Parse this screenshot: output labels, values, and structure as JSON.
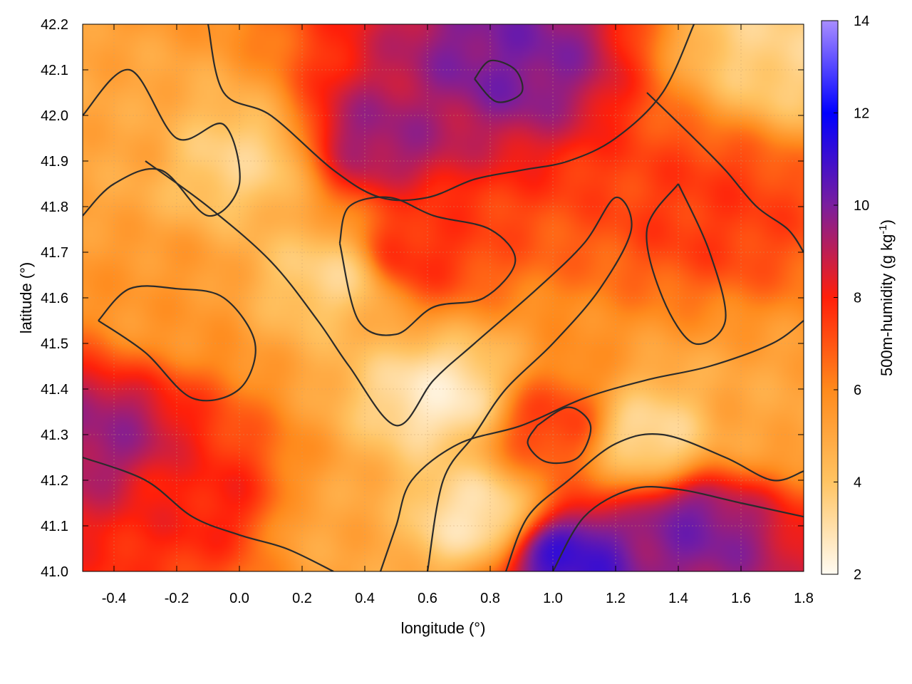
{
  "chart_data": {
    "type": "heatmap",
    "title": "",
    "xlabel": "longitude (°)",
    "ylabel": "latitude (°)",
    "xlim": [
      -0.5,
      1.8
    ],
    "ylim": [
      41.0,
      42.2
    ],
    "x_ticks": [
      "-0.4",
      "-0.2",
      "0.0",
      "0.2",
      "0.4",
      "0.6",
      "0.8",
      "1.0",
      "1.2",
      "1.4",
      "1.6",
      "1.8"
    ],
    "y_ticks": [
      "41.0",
      "41.1",
      "41.2",
      "41.3",
      "41.4",
      "41.5",
      "41.6",
      "41.7",
      "41.8",
      "41.9",
      "42.0",
      "42.1",
      "42.2"
    ],
    "grid": true,
    "overlay": "contour lines",
    "colorbar": {
      "label": "500m-humidity (g kg-1)",
      "label_base": "500m-humidity (g kg",
      "label_sup": "-1",
      "label_tail": ")",
      "range": [
        2,
        14
      ],
      "ticks": [
        "2",
        "4",
        "6",
        "8",
        "10",
        "12",
        "14"
      ],
      "palette": [
        {
          "value": 2,
          "color": "#fffbf2"
        },
        {
          "value": 4,
          "color": "#ffc463"
        },
        {
          "value": 6,
          "color": "#ff8a1c"
        },
        {
          "value": 8,
          "color": "#ff1f0a"
        },
        {
          "value": 10,
          "color": "#7a1e9e"
        },
        {
          "value": 12,
          "color": "#0000ff"
        },
        {
          "value": 14,
          "color": "#a88dff"
        }
      ]
    },
    "field_features": [
      {
        "lon": -0.45,
        "lat": 41.3,
        "value": 9.5
      },
      {
        "lon": -0.1,
        "lat": 41.15,
        "value": 8.0
      },
      {
        "lon": 0.45,
        "lat": 41.95,
        "value": 9.5
      },
      {
        "lon": 0.85,
        "lat": 42.12,
        "value": 10.0
      },
      {
        "lon": 0.55,
        "lat": 41.7,
        "value": 7.8
      },
      {
        "lon": 1.5,
        "lat": 41.8,
        "value": 7.5
      },
      {
        "lon": 1.0,
        "lat": 41.32,
        "value": 7.5
      },
      {
        "lon": 1.05,
        "lat": 41.03,
        "value": 11.0
      },
      {
        "lon": 1.45,
        "lat": 41.1,
        "value": 10.0
      },
      {
        "lon": 0.0,
        "lat": 41.9,
        "value": 3.5
      },
      {
        "lon": 0.3,
        "lat": 41.65,
        "value": 3.5
      },
      {
        "lon": 0.65,
        "lat": 41.38,
        "value": 2.6
      },
      {
        "lon": 0.75,
        "lat": 41.12,
        "value": 2.8
      },
      {
        "lon": 1.3,
        "lat": 41.3,
        "value": 3.2
      },
      {
        "lon": -0.25,
        "lat": 41.6,
        "value": 5.5
      },
      {
        "lon": -0.4,
        "lat": 41.95,
        "value": 5.0
      },
      {
        "lon": 1.7,
        "lat": 41.35,
        "value": 5.0
      },
      {
        "lon": 0.3,
        "lat": 41.1,
        "value": 5.0
      },
      {
        "lon": 1.75,
        "lat": 42.15,
        "value": 3.5
      }
    ],
    "contours": [
      {
        "name": "north-humid-band",
        "points": [
          [
            -0.1,
            42.2
          ],
          [
            -0.05,
            42.05
          ],
          [
            0.1,
            42.0
          ],
          [
            0.3,
            41.88
          ],
          [
            0.45,
            41.82
          ],
          [
            0.6,
            41.82
          ],
          [
            0.75,
            41.86
          ],
          [
            0.9,
            41.88
          ],
          [
            1.05,
            41.9
          ],
          [
            1.2,
            41.95
          ],
          [
            1.35,
            42.05
          ],
          [
            1.45,
            42.2
          ]
        ]
      },
      {
        "name": "northwest-dry-tongue",
        "points": [
          [
            -0.5,
            42.0
          ],
          [
            -0.35,
            42.1
          ],
          [
            -0.2,
            41.95
          ],
          [
            -0.05,
            41.98
          ],
          [
            0.0,
            41.85
          ],
          [
            -0.1,
            41.78
          ],
          [
            -0.25,
            41.88
          ],
          [
            -0.4,
            41.85
          ],
          [
            -0.5,
            41.78
          ]
        ]
      },
      {
        "name": "central-dry-corridor",
        "points": [
          [
            -0.3,
            41.9
          ],
          [
            -0.1,
            41.8
          ],
          [
            0.1,
            41.68
          ],
          [
            0.25,
            41.55
          ],
          [
            0.35,
            41.45
          ],
          [
            0.5,
            41.32
          ],
          [
            0.62,
            41.42
          ],
          [
            0.75,
            41.5
          ],
          [
            0.95,
            41.62
          ],
          [
            1.1,
            41.72
          ],
          [
            1.2,
            41.82
          ],
          [
            1.25,
            41.75
          ],
          [
            1.15,
            41.62
          ],
          [
            1.0,
            41.5
          ],
          [
            0.85,
            41.4
          ],
          [
            0.75,
            41.3
          ],
          [
            0.65,
            41.2
          ],
          [
            0.6,
            41.0
          ]
        ]
      },
      {
        "name": "central-humid-loop",
        "points": [
          [
            0.32,
            41.72
          ],
          [
            0.38,
            41.55
          ],
          [
            0.5,
            41.52
          ],
          [
            0.62,
            41.58
          ],
          [
            0.78,
            41.6
          ],
          [
            0.88,
            41.68
          ],
          [
            0.8,
            41.75
          ],
          [
            0.62,
            41.78
          ],
          [
            0.48,
            41.82
          ],
          [
            0.35,
            41.8
          ],
          [
            0.32,
            41.72
          ]
        ]
      },
      {
        "name": "southwest-humid-loop",
        "points": [
          [
            -0.45,
            41.55
          ],
          [
            -0.3,
            41.48
          ],
          [
            -0.15,
            41.38
          ],
          [
            0.0,
            41.4
          ],
          [
            0.05,
            41.5
          ],
          [
            -0.05,
            41.6
          ],
          [
            -0.2,
            41.62
          ],
          [
            -0.35,
            41.62
          ],
          [
            -0.45,
            41.55
          ]
        ]
      },
      {
        "name": "south-dry-band-1",
        "points": [
          [
            0.45,
            41.0
          ],
          [
            0.5,
            41.1
          ],
          [
            0.55,
            41.2
          ],
          [
            0.7,
            41.28
          ],
          [
            0.9,
            41.32
          ],
          [
            1.1,
            41.38
          ],
          [
            1.3,
            41.42
          ],
          [
            1.5,
            41.45
          ],
          [
            1.7,
            41.5
          ],
          [
            1.8,
            41.55
          ]
        ]
      },
      {
        "name": "south-dry-band-2",
        "points": [
          [
            0.85,
            41.0
          ],
          [
            0.92,
            41.12
          ],
          [
            1.05,
            41.2
          ],
          [
            1.2,
            41.28
          ],
          [
            1.35,
            41.3
          ],
          [
            1.55,
            41.25
          ],
          [
            1.7,
            41.2
          ],
          [
            1.8,
            41.22
          ]
        ]
      },
      {
        "name": "south-dry-band-3",
        "points": [
          [
            1.0,
            41.0
          ],
          [
            1.1,
            41.12
          ],
          [
            1.25,
            41.18
          ],
          [
            1.4,
            41.18
          ],
          [
            1.6,
            41.15
          ],
          [
            1.8,
            41.12
          ]
        ]
      },
      {
        "name": "east-humid-loop",
        "points": [
          [
            1.3,
            42.05
          ],
          [
            1.45,
            41.95
          ],
          [
            1.55,
            41.88
          ],
          [
            1.65,
            41.8
          ],
          [
            1.75,
            41.75
          ],
          [
            1.8,
            41.7
          ]
        ]
      },
      {
        "name": "east-mid-loop",
        "points": [
          [
            1.4,
            41.85
          ],
          [
            1.5,
            41.7
          ],
          [
            1.55,
            41.55
          ],
          [
            1.45,
            41.5
          ],
          [
            1.35,
            41.6
          ],
          [
            1.3,
            41.75
          ],
          [
            1.4,
            41.85
          ]
        ]
      },
      {
        "name": "southeast-coast-loop",
        "points": [
          [
            0.95,
            41.32
          ],
          [
            1.05,
            41.36
          ],
          [
            1.12,
            41.32
          ],
          [
            1.08,
            41.25
          ],
          [
            0.98,
            41.24
          ],
          [
            0.92,
            41.28
          ],
          [
            0.95,
            41.32
          ]
        ]
      },
      {
        "name": "far-south-west-band",
        "points": [
          [
            -0.5,
            41.25
          ],
          [
            -0.3,
            41.2
          ],
          [
            -0.15,
            41.12
          ],
          [
            0.0,
            41.08
          ],
          [
            0.15,
            41.05
          ],
          [
            0.3,
            41.0
          ]
        ]
      },
      {
        "name": "small-north-loop",
        "points": [
          [
            0.75,
            42.08
          ],
          [
            0.82,
            42.03
          ],
          [
            0.9,
            42.05
          ],
          [
            0.88,
            42.1
          ],
          [
            0.8,
            42.12
          ],
          [
            0.75,
            42.08
          ]
        ]
      }
    ]
  }
}
